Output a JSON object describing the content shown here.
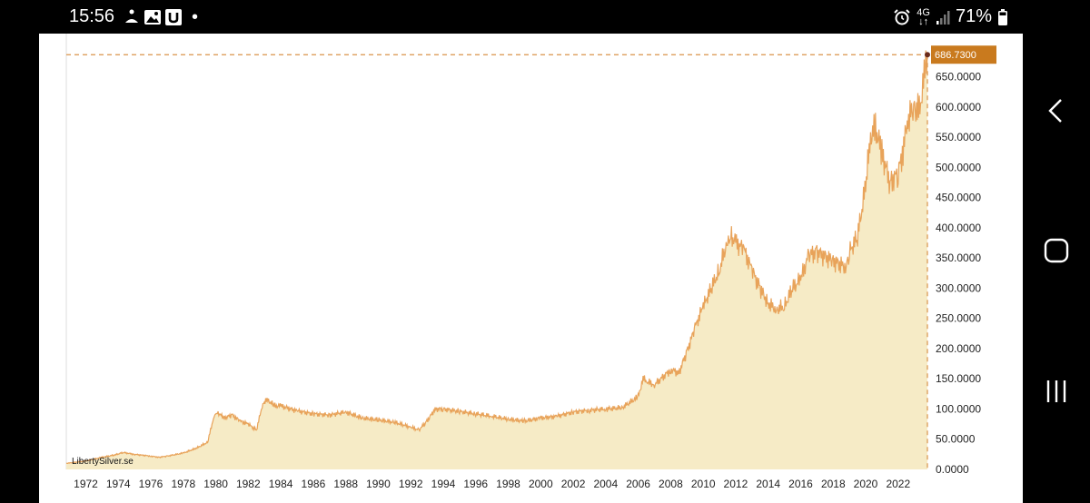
{
  "status_bar": {
    "time": "15:56",
    "network": "4G",
    "battery": "71%",
    "icons": [
      "meditation-icon",
      "gallery-icon",
      "u-app-icon",
      "notification-dot-icon",
      "alarm-icon",
      "signal-icon",
      "battery-icon"
    ]
  },
  "watermark": "LibertySilver.se",
  "current_price_label": "686.7300",
  "colors": {
    "line": "#e8a35a",
    "area": "#f6ebc6",
    "price_badge": "#c97a1e"
  },
  "navigation": {
    "buttons": [
      "back-icon",
      "home-icon",
      "recents-icon"
    ]
  },
  "chart_data": {
    "type": "area",
    "title": "",
    "xlabel": "",
    "ylabel": "",
    "ylim": [
      0,
      700
    ],
    "xlim": [
      1970.8,
      2023.8
    ],
    "x_ticks": [
      "1972",
      "1974",
      "1976",
      "1978",
      "1980",
      "1982",
      "1984",
      "1986",
      "1988",
      "1990",
      "1992",
      "1994",
      "1996",
      "1998",
      "2000",
      "2002",
      "2004",
      "2006",
      "2008",
      "2010",
      "2012",
      "2014",
      "2016",
      "2018",
      "2020",
      "2022"
    ],
    "y_ticks": [
      "0.0000",
      "50.0000",
      "100.0000",
      "150.0000",
      "200.0000",
      "250.0000",
      "300.0000",
      "350.0000",
      "400.0000",
      "450.0000",
      "500.0000",
      "550.0000",
      "600.0000",
      "650.0000"
    ],
    "last_value": 686.73,
    "series": [
      {
        "x": [
          1970.8,
          1972,
          1973,
          1973.8,
          1974.3,
          1975,
          1976,
          1976.5,
          1977,
          1978,
          1978.8,
          1979.5,
          1979.9,
          1980.1,
          1980.5,
          1981,
          1981.5,
          1982,
          1982.5,
          1982.9,
          1983.2,
          1983.6,
          1984,
          1985,
          1986,
          1987,
          1988,
          1989,
          1990,
          1991,
          1992,
          1992.5,
          1993,
          1993.5,
          1994,
          1995,
          1996,
          1997,
          1998,
          1999,
          2000,
          2001,
          2002,
          2003,
          2004,
          2005,
          2006,
          2006.3,
          2006.6,
          2007,
          2008,
          2008.5,
          2009,
          2009.5,
          2010,
          2010.5,
          2011,
          2011.5,
          2011.7,
          2012,
          2012.5,
          2013,
          2013.5,
          2014,
          2014.5,
          2015,
          2015.5,
          2016,
          2016.5,
          2017,
          2018,
          2018.8,
          2019,
          2019.5,
          2020,
          2020.3,
          2020.6,
          2021,
          2021.5,
          2022,
          2022.3,
          2022.6,
          2023,
          2023.3,
          2023.6,
          2023.8
        ],
        "values": [
          10,
          14,
          20,
          24,
          28,
          25,
          22,
          20,
          22,
          27,
          35,
          45,
          90,
          95,
          85,
          90,
          80,
          75,
          65,
          110,
          115,
          105,
          105,
          97,
          92,
          90,
          95,
          85,
          82,
          78,
          70,
          65,
          80,
          100,
          100,
          96,
          92,
          88,
          83,
          80,
          85,
          88,
          95,
          98,
          100,
          102,
          120,
          150,
          145,
          140,
          165,
          160,
          195,
          235,
          270,
          300,
          330,
          380,
          388,
          375,
          365,
          330,
          300,
          275,
          265,
          270,
          300,
          315,
          355,
          360,
          345,
          335,
          360,
          385,
          470,
          550,
          565,
          525,
          475,
          490,
          530,
          580,
          600,
          590,
          650,
          686.73
        ]
      }
    ]
  }
}
